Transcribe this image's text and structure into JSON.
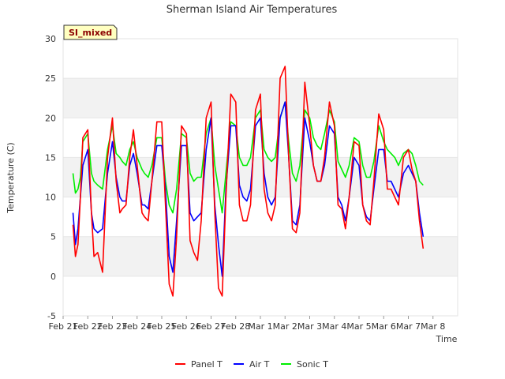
{
  "chart_data": {
    "type": "line",
    "title": "Sherman Island Air Temperatures",
    "badge": "SI_mixed",
    "xlabel": "Time",
    "ylabel": "Temperature (C)",
    "ylim": [
      -5,
      30
    ],
    "yticks": [
      "-5",
      "0",
      "5",
      "10",
      "15",
      "20",
      "25",
      "30"
    ],
    "xlim": [
      0,
      16
    ],
    "xtick_labels": [
      "Feb 21",
      "Feb 22",
      "Feb 23",
      "Feb 24",
      "Feb 25",
      "Feb 26",
      "Feb 27",
      "Feb 28",
      "Mar 1",
      "Mar 2",
      "Mar 3",
      "Mar 4",
      "Mar 5",
      "Mar 6",
      "Mar 7",
      "Mar 8"
    ],
    "grid": "horizontal bands",
    "legend_position": "bottom",
    "series": [
      {
        "name": "Panel T",
        "color": "#ff0000",
        "x": [
          0.4,
          0.5,
          0.6,
          0.7,
          0.8,
          1.0,
          1.15,
          1.25,
          1.4,
          1.6,
          1.8,
          2.0,
          2.15,
          2.3,
          2.4,
          2.55,
          2.7,
          2.85,
          3.0,
          3.2,
          3.3,
          3.45,
          3.6,
          3.8,
          4.0,
          4.15,
          4.3,
          4.45,
          4.6,
          4.8,
          5.0,
          5.15,
          5.3,
          5.45,
          5.6,
          5.8,
          6.0,
          6.15,
          6.3,
          6.45,
          6.6,
          6.8,
          7.0,
          7.15,
          7.3,
          7.45,
          7.6,
          7.8,
          8.0,
          8.15,
          8.3,
          8.45,
          8.6,
          8.8,
          9.0,
          9.15,
          9.3,
          9.45,
          9.6,
          9.8,
          10.0,
          10.15,
          10.3,
          10.45,
          10.6,
          10.8,
          11.0,
          11.15,
          11.3,
          11.45,
          11.6,
          11.8,
          12.0,
          12.15,
          12.3,
          12.45,
          12.6,
          12.8,
          13.0,
          13.15,
          13.3,
          13.45,
          13.6,
          13.8,
          14.0,
          14.15,
          14.3,
          14.45,
          14.6
        ],
        "y": [
          6.5,
          2.5,
          4.0,
          10.0,
          17.5,
          18.5,
          8.0,
          2.5,
          3.0,
          0.5,
          15.0,
          20.0,
          12.0,
          8.0,
          8.5,
          9.0,
          15.0,
          18.5,
          14.0,
          8.0,
          7.5,
          7.0,
          12.0,
          19.5,
          19.5,
          9.0,
          -1.0,
          -2.5,
          5.0,
          19.0,
          18.0,
          4.5,
          3.0,
          2.0,
          7.0,
          20.0,
          22.0,
          8.0,
          -1.5,
          -2.5,
          10.0,
          23.0,
          22.0,
          9.0,
          7.0,
          7.0,
          9.0,
          21.0,
          23.0,
          11.0,
          8.0,
          7.0,
          9.0,
          25.0,
          26.5,
          15.0,
          6.0,
          5.5,
          8.0,
          24.5,
          19.0,
          14.0,
          12.0,
          12.0,
          15.0,
          22.0,
          19.0,
          9.0,
          8.5,
          6.0,
          10.0,
          17.0,
          16.5,
          9.0,
          7.0,
          6.5,
          12.0,
          20.5,
          18.5,
          11.0,
          11.0,
          10.0,
          9.0,
          15.0,
          16.0,
          13.5,
          12.0,
          7.0,
          3.5
        ]
      },
      {
        "name": "Air T",
        "color": "#0000ff",
        "x": [
          0.4,
          0.5,
          0.6,
          0.7,
          0.8,
          1.0,
          1.15,
          1.25,
          1.4,
          1.6,
          1.8,
          2.0,
          2.15,
          2.3,
          2.4,
          2.55,
          2.7,
          2.85,
          3.0,
          3.2,
          3.3,
          3.45,
          3.6,
          3.8,
          4.0,
          4.15,
          4.3,
          4.45,
          4.6,
          4.8,
          5.0,
          5.15,
          5.3,
          5.45,
          5.6,
          5.8,
          6.0,
          6.15,
          6.3,
          6.45,
          6.6,
          6.8,
          7.0,
          7.15,
          7.3,
          7.45,
          7.6,
          7.8,
          8.0,
          8.15,
          8.3,
          8.45,
          8.6,
          8.8,
          9.0,
          9.15,
          9.3,
          9.45,
          9.6,
          9.8,
          10.0,
          10.15,
          10.3,
          10.45,
          10.6,
          10.8,
          11.0,
          11.15,
          11.3,
          11.45,
          11.6,
          11.8,
          12.0,
          12.15,
          12.3,
          12.45,
          12.6,
          12.8,
          13.0,
          13.15,
          13.3,
          13.45,
          13.6,
          13.8,
          14.0,
          14.15,
          14.3,
          14.45,
          14.6
        ],
        "y": [
          8.0,
          4.0,
          6.0,
          10.0,
          14.0,
          16.0,
          8.0,
          6.0,
          5.5,
          6.0,
          13.0,
          17.0,
          12.5,
          10.0,
          9.5,
          9.5,
          14.0,
          15.5,
          13.0,
          9.0,
          9.0,
          8.5,
          12.0,
          16.5,
          16.5,
          11.0,
          2.5,
          0.5,
          7.0,
          16.5,
          16.5,
          8.0,
          7.0,
          7.5,
          8.0,
          16.0,
          20.0,
          9.0,
          4.0,
          0.0,
          11.0,
          19.0,
          19.0,
          11.5,
          10.0,
          9.5,
          11.0,
          19.0,
          20.0,
          13.0,
          10.0,
          9.0,
          10.0,
          20.0,
          22.0,
          15.0,
          7.0,
          6.5,
          9.0,
          20.0,
          17.0,
          14.0,
          12.0,
          12.0,
          14.0,
          19.0,
          18.0,
          10.0,
          9.0,
          7.0,
          10.0,
          15.0,
          14.0,
          9.0,
          7.5,
          7.0,
          11.0,
          16.0,
          16.0,
          12.0,
          12.0,
          11.0,
          10.0,
          13.0,
          14.0,
          13.0,
          12.0,
          8.0,
          5.0
        ]
      },
      {
        "name": "Sonic T",
        "color": "#00ee00",
        "x": [
          0.4,
          0.5,
          0.6,
          0.7,
          0.8,
          1.0,
          1.15,
          1.25,
          1.4,
          1.6,
          1.8,
          2.0,
          2.15,
          2.3,
          2.4,
          2.55,
          2.7,
          2.85,
          3.0,
          3.2,
          3.3,
          3.45,
          3.6,
          3.8,
          4.0,
          4.15,
          4.3,
          4.45,
          4.6,
          4.8,
          5.0,
          5.15,
          5.3,
          5.45,
          5.6,
          5.8,
          6.0,
          6.15,
          6.3,
          6.45,
          6.6,
          6.8,
          7.0,
          7.15,
          7.3,
          7.45,
          7.6,
          7.8,
          8.0,
          8.15,
          8.3,
          8.45,
          8.6,
          8.8,
          9.0,
          9.15,
          9.3,
          9.45,
          9.6,
          9.8,
          10.0,
          10.15,
          10.3,
          10.45,
          10.6,
          10.8,
          11.0,
          11.15,
          11.3,
          11.45,
          11.6,
          11.8,
          12.0,
          12.15,
          12.3,
          12.45,
          12.6,
          12.8,
          13.0,
          13.15,
          13.3,
          13.45,
          13.6,
          13.8,
          14.0,
          14.15,
          14.3,
          14.45,
          14.6
        ],
        "y": [
          13.0,
          10.5,
          11.0,
          12.5,
          17.0,
          18.0,
          13.0,
          12.0,
          11.5,
          11.0,
          16.0,
          19.0,
          15.5,
          15.0,
          14.5,
          14.0,
          16.0,
          17.0,
          15.0,
          13.5,
          13.0,
          12.5,
          14.0,
          17.5,
          17.5,
          12.0,
          9.0,
          8.0,
          11.0,
          18.0,
          17.5,
          13.0,
          12.0,
          12.5,
          12.5,
          18.0,
          20.0,
          14.0,
          11.0,
          8.0,
          13.0,
          19.5,
          19.0,
          15.0,
          14.0,
          14.0,
          15.0,
          20.0,
          21.0,
          16.0,
          15.0,
          14.5,
          15.0,
          20.0,
          22.0,
          17.0,
          13.0,
          12.0,
          14.0,
          21.0,
          20.0,
          17.5,
          16.5,
          16.0,
          18.0,
          21.0,
          19.5,
          14.5,
          13.5,
          12.5,
          14.0,
          17.5,
          17.0,
          14.0,
          12.5,
          12.5,
          14.5,
          19.0,
          17.0,
          16.0,
          15.5,
          15.0,
          14.0,
          15.5,
          16.0,
          15.5,
          14.0,
          12.0,
          11.5
        ]
      }
    ]
  }
}
